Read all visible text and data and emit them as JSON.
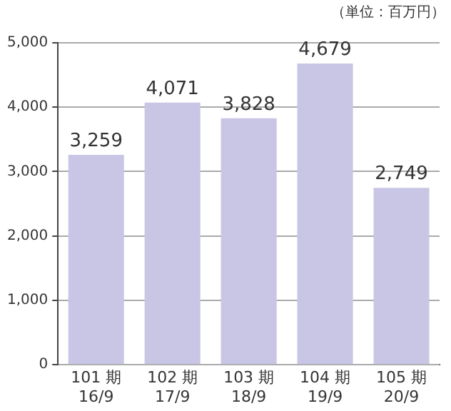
{
  "chart_data": {
    "type": "bar",
    "annotations": [
      "（単位：百万円）"
    ],
    "categories": [
      "101 期\n16/9",
      "102 期\n17/9",
      "103 期\n18/9",
      "104 期\n19/9",
      "105 期\n20/9"
    ],
    "values": [
      3259,
      4071,
      3828,
      4679,
      2749
    ],
    "value_labels": [
      "3,259",
      "4,071",
      "3,828",
      "4,679",
      "2,749"
    ],
    "color": "#c8c6e4",
    "ylim": [
      0,
      5000
    ],
    "yticks": [
      {
        "value": 0,
        "label": "0"
      },
      {
        "value": 1000,
        "label": "1,000"
      },
      {
        "value": 2000,
        "label": "2,000"
      },
      {
        "value": 3000,
        "label": "3,000"
      },
      {
        "value": 4000,
        "label": "4,000"
      },
      {
        "value": 5000,
        "label": "5,000"
      }
    ],
    "grid": "y"
  }
}
